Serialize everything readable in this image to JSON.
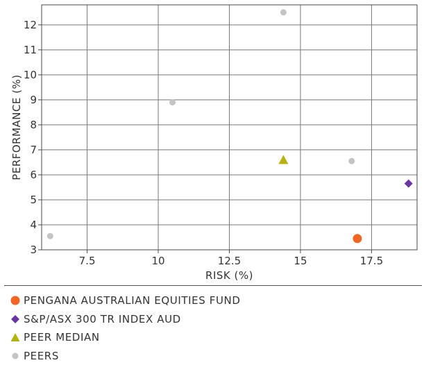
{
  "chart_data": {
    "type": "scatter",
    "xlabel": "RISK (%)",
    "ylabel": "PERFORMANCE (%)",
    "xlim": [
      5.9,
      19.1
    ],
    "ylim": [
      3,
      12.8
    ],
    "x_ticks": [
      7.5,
      10,
      12.5,
      15,
      17.5
    ],
    "x_tick_labels": [
      "7.5",
      "10",
      "12.5",
      "15",
      "17.5"
    ],
    "y_ticks": [
      3,
      4,
      5,
      6,
      7,
      8,
      9,
      10,
      11,
      12
    ],
    "y_tick_labels": [
      "3",
      "4",
      "5",
      "6",
      "7",
      "8",
      "9",
      "10",
      "11",
      "12"
    ],
    "grid": true,
    "legend_placement": "bottom",
    "series": [
      {
        "name": "PENGANA AUSTRALIAN EQUITIES FUND",
        "marker": "circle",
        "color": "#f26522",
        "points": [
          {
            "x": 17.0,
            "y": 3.45
          }
        ]
      },
      {
        "name": "S&P/ASX 300 TR INDEX AUD",
        "marker": "diamond",
        "color": "#6a35a5",
        "points": [
          {
            "x": 18.8,
            "y": 5.65
          }
        ]
      },
      {
        "name": "PEER MEDIAN",
        "marker": "triangle",
        "color": "#b5b20f",
        "points": [
          {
            "x": 14.4,
            "y": 6.6
          }
        ]
      },
      {
        "name": "PEERS",
        "marker": "dot",
        "color": "#c4c4c4",
        "points": [
          {
            "x": 6.2,
            "y": 3.55
          },
          {
            "x": 10.5,
            "y": 8.9
          },
          {
            "x": 14.4,
            "y": 12.5
          },
          {
            "x": 16.8,
            "y": 6.55
          }
        ]
      }
    ]
  }
}
